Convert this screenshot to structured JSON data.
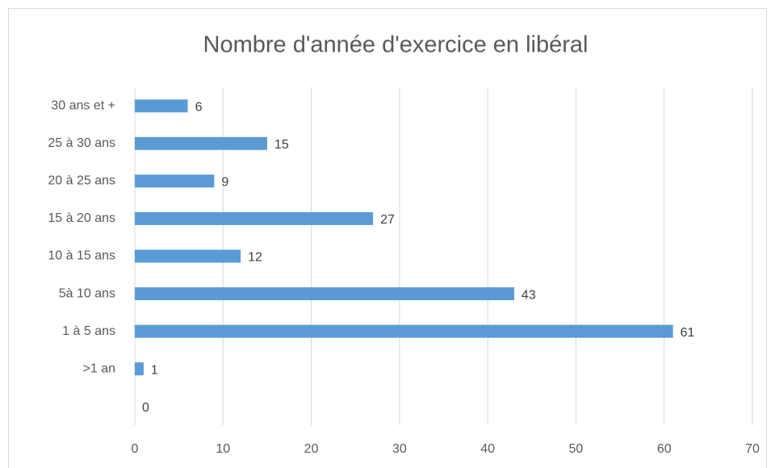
{
  "chart_data": {
    "type": "barh",
    "title": "Nombre d'année d'exercice en libéral",
    "categories": [
      null,
      ">1 an",
      "1 à 5 ans",
      "5à 10 ans",
      "10 à 15 ans",
      "15 à 20 ans",
      "20 à 25 ans",
      "25 à 30 ans",
      "30 ans et +"
    ],
    "values": [
      0,
      1,
      61,
      43,
      12,
      27,
      9,
      15,
      6
    ],
    "color": "#5b9bd5",
    "xlim": [
      0,
      70
    ],
    "xticks": [
      0,
      10,
      20,
      30,
      40,
      50,
      60,
      70
    ],
    "grid": true
  }
}
